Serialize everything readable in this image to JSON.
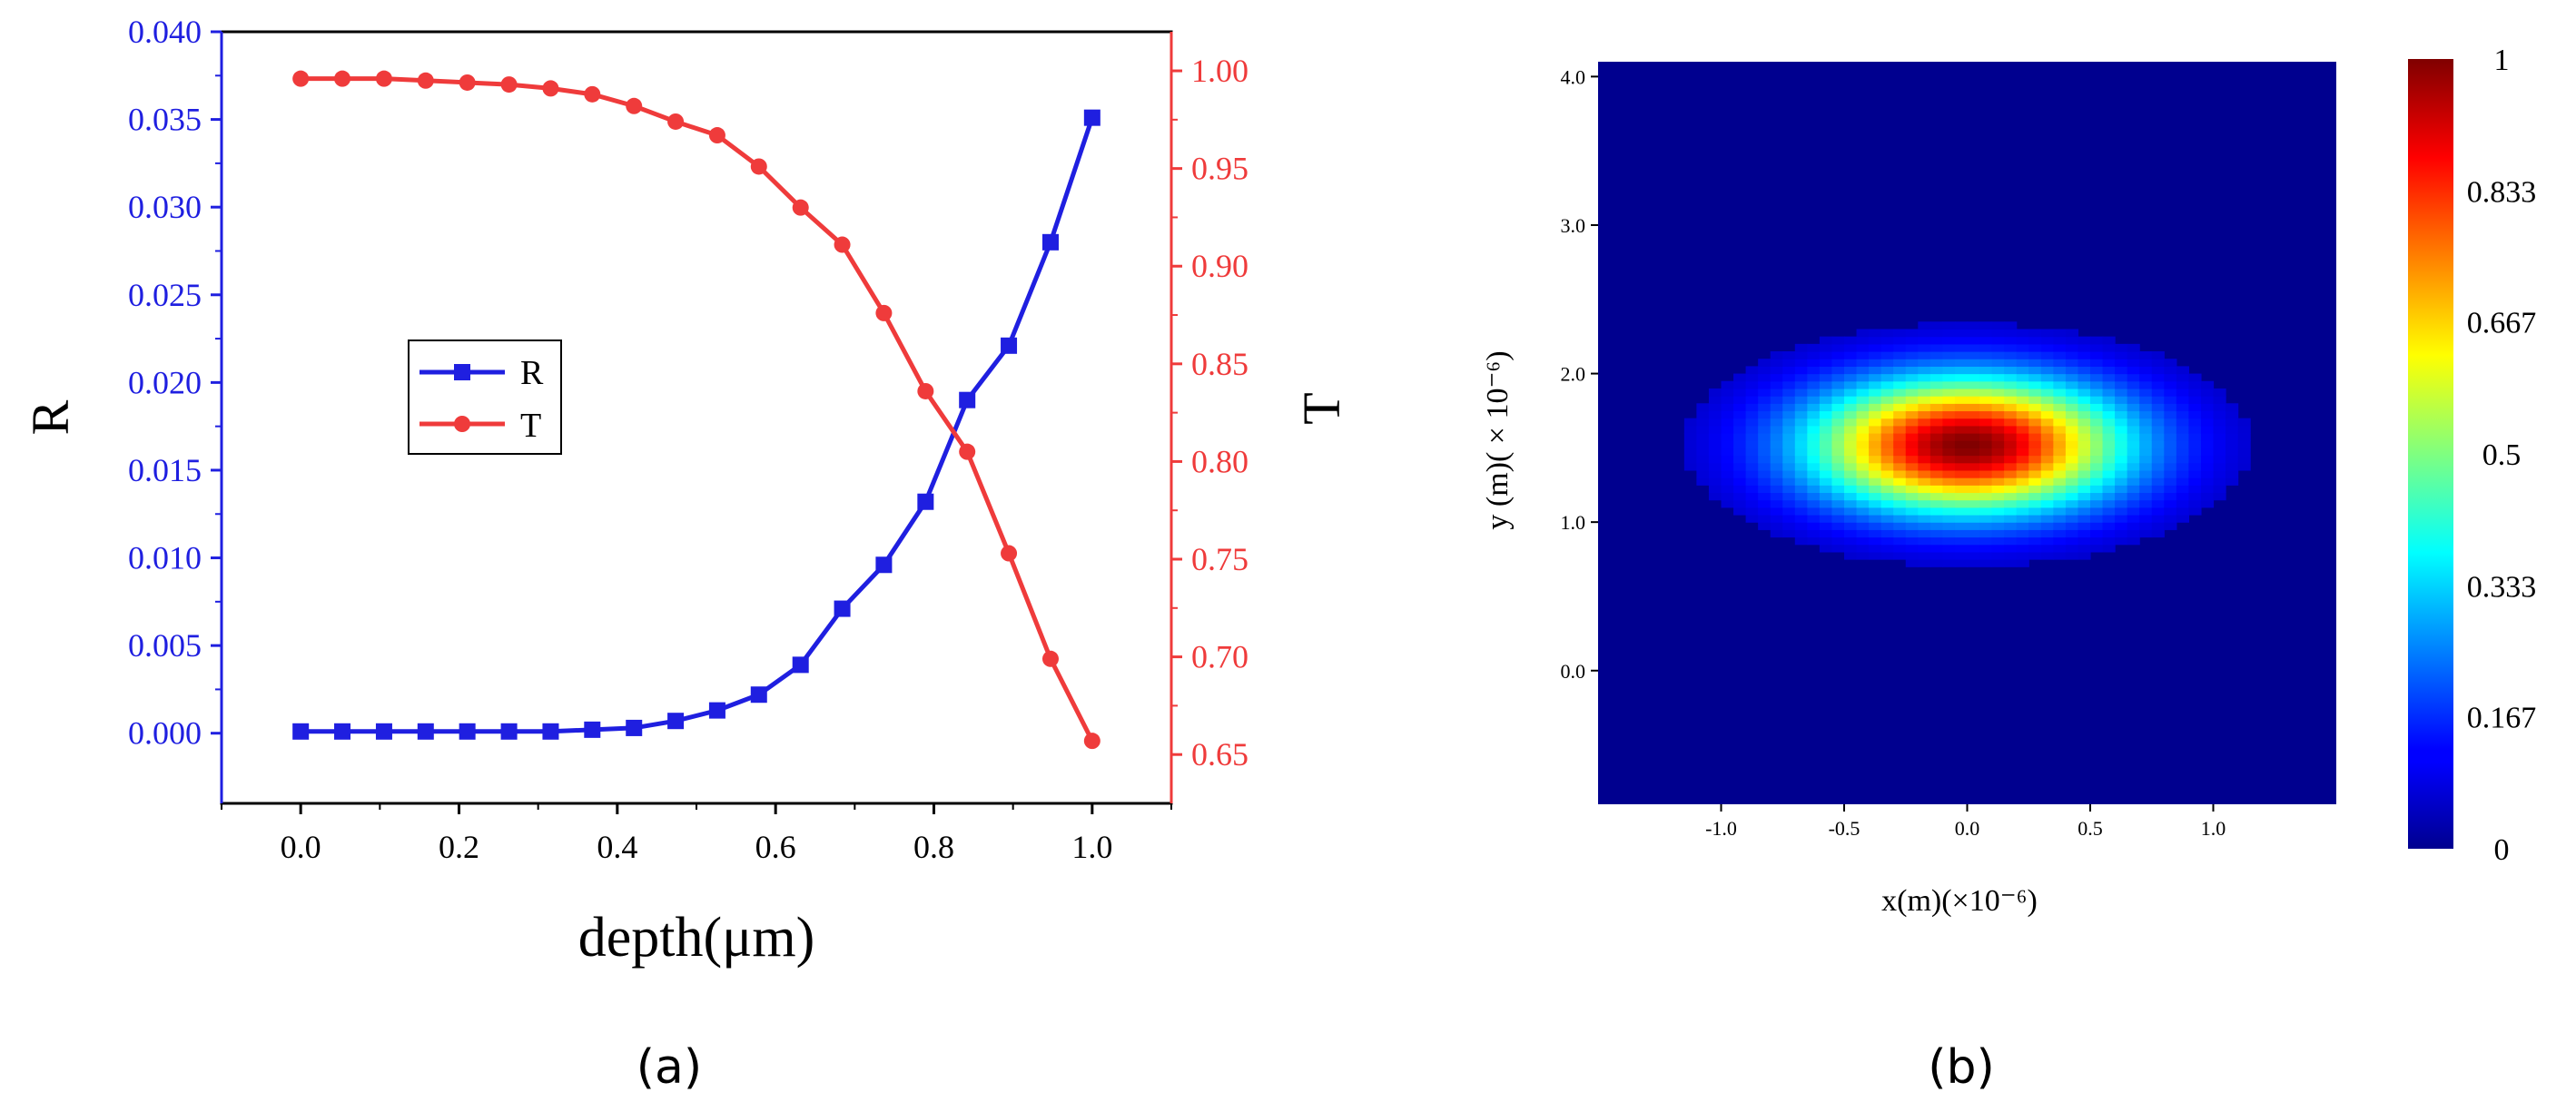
{
  "colors": {
    "r_series": "#1f1fe0",
    "t_series": "#ef3b3b",
    "axis_black": "#000000",
    "heatmap_bg": "#00008f"
  },
  "panel_labels": [
    "(a)",
    "(b)"
  ],
  "chart_data": [
    {
      "type": "line",
      "panel": "(a)",
      "xlabel": "depth(μm)",
      "ylabel_left": "R",
      "ylabel_right": "T",
      "xlim": [
        -0.1,
        1.1
      ],
      "ylim_left": [
        -0.004,
        0.04
      ],
      "ylim_right": [
        0.625,
        1.02
      ],
      "x_ticks": [
        "0.0",
        "0.2",
        "0.4",
        "0.6",
        "0.8",
        "1.0"
      ],
      "y_left_ticks": [
        "0.000",
        "0.005",
        "0.010",
        "0.015",
        "0.020",
        "0.025",
        "0.030",
        "0.035",
        "0.040"
      ],
      "y_right_ticks": [
        "0.65",
        "0.70",
        "0.75",
        "0.80",
        "0.85",
        "0.90",
        "0.95",
        "1.00"
      ],
      "legend": {
        "position": "center-left",
        "entries": [
          "R",
          "T"
        ]
      },
      "x": [
        0.0,
        0.0526,
        0.1053,
        0.1579,
        0.2105,
        0.2632,
        0.3158,
        0.3684,
        0.4211,
        0.4737,
        0.5263,
        0.5789,
        0.6316,
        0.6842,
        0.7368,
        0.7895,
        0.8421,
        0.8947,
        0.9474,
        1.0
      ],
      "series": [
        {
          "name": "R",
          "axis": "left",
          "marker": "square",
          "values": [
            0.0001,
            0.0001,
            0.0001,
            0.0001,
            0.0001,
            0.0001,
            0.0001,
            0.0002,
            0.0003,
            0.0007,
            0.0013,
            0.0022,
            0.0039,
            0.0071,
            0.0096,
            0.0132,
            0.019,
            0.0221,
            0.028,
            0.0351
          ]
        },
        {
          "name": "T",
          "axis": "right",
          "marker": "circle",
          "values": [
            0.996,
            0.996,
            0.996,
            0.995,
            0.994,
            0.993,
            0.991,
            0.988,
            0.982,
            0.974,
            0.967,
            0.951,
            0.93,
            0.911,
            0.876,
            0.836,
            0.805,
            0.753,
            0.699,
            0.657
          ]
        }
      ]
    },
    {
      "type": "heatmap",
      "panel": "(b)",
      "xlabel": "x(m)(×10⁻⁶)",
      "ylabel": "y (m)( × 10⁻⁶)",
      "xlim": [
        -1.5,
        1.5
      ],
      "ylim": [
        -0.9,
        4.1
      ],
      "x_ticks": [
        "-1.0",
        "-0.5",
        "0.0",
        "0.5",
        "1.0"
      ],
      "y_ticks": [
        "0.0",
        "1.0",
        "2.0",
        "3.0",
        "4.0"
      ],
      "field_peak": {
        "x": 0.0,
        "y": 1.52,
        "value": 1.0
      },
      "field_width": {
        "x": 0.62,
        "y": 0.44
      },
      "background_value": 0.05,
      "colorbar": {
        "min": 0,
        "max": 1,
        "ticks": [
          "1",
          "0.833",
          "0.667",
          "0.5",
          "0.333",
          "0.167",
          "0"
        ],
        "colormap": "jet"
      }
    }
  ]
}
